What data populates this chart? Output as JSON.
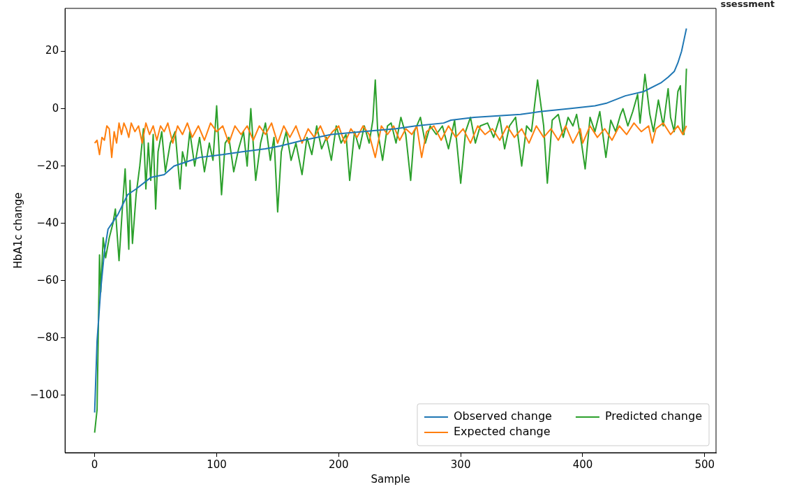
{
  "chart_data": {
    "type": "line",
    "xlabel": "Sample",
    "ylabel": "HbA1c change",
    "annotations": [
      "ssessment"
    ],
    "xlim": [
      -24.25,
      509.25
    ],
    "xticks": [
      0,
      100,
      200,
      300,
      400,
      500
    ],
    "ylim": [
      -120,
      35
    ],
    "yticks": [
      -100,
      -80,
      -60,
      -40,
      -20,
      0,
      20
    ],
    "grid": false,
    "legend": "lower right",
    "marker": "none",
    "line_style": "solid",
    "series": [
      {
        "name": "Observed change",
        "color": "#1f77b4",
        "x": [
          0,
          2,
          5,
          8,
          11,
          19,
          27,
          34,
          46,
          57,
          65,
          79,
          86,
          105,
          121,
          140,
          152,
          171,
          194,
          219,
          247,
          263,
          286,
          292,
          311,
          349,
          365,
          389,
          410,
          420,
          435,
          450,
          464,
          470,
          475,
          478,
          481,
          483,
          485
        ],
        "values": [
          -106,
          -81,
          -63,
          -50,
          -42,
          -37,
          -30,
          -28,
          -24,
          -23,
          -20,
          -18,
          -17,
          -16,
          -15,
          -14,
          -13,
          -11,
          -9,
          -8,
          -7,
          -6,
          -5,
          -4,
          -3,
          -2,
          -1,
          0,
          1,
          2,
          4.5,
          6,
          9,
          11,
          13,
          16,
          20,
          24,
          28
        ]
      },
      {
        "name": "Expected change",
        "color": "#ff7f0e",
        "x": [
          0,
          2,
          4,
          6,
          8,
          10,
          12,
          14,
          16,
          18,
          20,
          22,
          24,
          26,
          28,
          30,
          33,
          36,
          39,
          42,
          45,
          48,
          51,
          54,
          57,
          60,
          64,
          68,
          72,
          76,
          80,
          85,
          90,
          95,
          100,
          105,
          110,
          115,
          120,
          125,
          130,
          135,
          140,
          145,
          150,
          155,
          160,
          165,
          170,
          175,
          180,
          185,
          190,
          195,
          200,
          205,
          210,
          215,
          220,
          225,
          230,
          235,
          240,
          245,
          250,
          255,
          260,
          264,
          268,
          272,
          278,
          284,
          290,
          296,
          302,
          308,
          314,
          320,
          326,
          332,
          338,
          344,
          350,
          356,
          362,
          368,
          374,
          380,
          386,
          392,
          398,
          400,
          406,
          412,
          418,
          424,
          430,
          436,
          442,
          448,
          454,
          457,
          460,
          466,
          472,
          478,
          482,
          485
        ],
        "values": [
          -12,
          -11,
          -16,
          -10,
          -11,
          -6,
          -7,
          -17,
          -8,
          -12,
          -5,
          -9,
          -5,
          -7,
          -10,
          -5,
          -8,
          -6,
          -12,
          -5,
          -9,
          -6,
          -11,
          -6,
          -8,
          -5,
          -12,
          -6,
          -9,
          -5,
          -10,
          -6,
          -11,
          -5,
          -8,
          -6,
          -12,
          -6,
          -9,
          -6,
          -11,
          -6,
          -9,
          -5,
          -12,
          -6,
          -10,
          -6,
          -12,
          -7,
          -10,
          -6,
          -11,
          -8,
          -6,
          -12,
          -7,
          -10,
          -6,
          -9,
          -17,
          -6,
          -9,
          -6,
          -11,
          -7,
          -9,
          -6,
          -17,
          -8,
          -6,
          -11,
          -6,
          -10,
          -7,
          -12,
          -6,
          -9,
          -7,
          -11,
          -6,
          -10,
          -7,
          -12,
          -6,
          -10,
          -7,
          -11,
          -6,
          -12,
          -7,
          -12,
          -6,
          -10,
          -7,
          -11,
          -6,
          -9,
          -5,
          -8,
          -6,
          -12,
          -7,
          -5,
          -9,
          -6,
          -9,
          -6
        ]
      },
      {
        "name": "Predicted change",
        "color": "#2ca02c",
        "x": [
          0,
          2,
          4,
          5,
          7,
          9,
          12,
          15,
          17,
          20,
          23,
          25,
          28,
          29,
          31,
          34,
          37,
          40,
          42,
          44,
          46,
          48,
          50,
          52,
          55,
          58,
          62,
          66,
          70,
          72,
          75,
          78,
          82,
          86,
          90,
          94,
          97,
          100,
          104,
          107,
          110,
          114,
          118,
          122,
          125,
          128,
          132,
          136,
          140,
          144,
          147,
          150,
          153,
          157,
          161,
          165,
          170,
          174,
          178,
          182,
          186,
          190,
          194,
          198,
          202,
          206,
          209,
          213,
          217,
          221,
          225,
          228,
          230,
          232,
          236,
          240,
          243,
          247,
          251,
          255,
          259,
          262,
          267,
          271,
          275,
          280,
          285,
          290,
          295,
          300,
          304,
          308,
          312,
          316,
          322,
          327,
          332,
          336,
          340,
          345,
          350,
          354,
          358,
          363,
          368,
          371,
          375,
          380,
          384,
          388,
          392,
          395,
          399,
          402,
          406,
          410,
          414,
          419,
          423,
          427,
          431,
          433,
          437,
          441,
          445,
          447,
          451,
          455,
          458,
          462,
          466,
          470,
          472,
          475,
          478,
          480,
          482,
          483,
          485
        ],
        "values": [
          -113,
          -105,
          -51,
          -64,
          -45,
          -52,
          -45,
          -40,
          -35,
          -53,
          -33,
          -21,
          -49,
          -25,
          -47,
          -30,
          -20,
          -7,
          -28,
          -12,
          -25,
          -9,
          -35,
          -15,
          -8,
          -22,
          -12,
          -8,
          -28,
          -15,
          -20,
          -8,
          -20,
          -10,
          -22,
          -12,
          -18,
          1,
          -30,
          -12,
          -10,
          -22,
          -14,
          -8,
          -20,
          0,
          -25,
          -12,
          -5,
          -18,
          -10,
          -36,
          -15,
          -8,
          -18,
          -12,
          -23,
          -10,
          -16,
          -6,
          -14,
          -10,
          -18,
          -6,
          -12,
          -9,
          -25,
          -8,
          -14,
          -6,
          -12,
          -4,
          10,
          -8,
          -18,
          -6,
          -5,
          -12,
          -3,
          -9,
          -25,
          -8,
          -3,
          -12,
          -6,
          -9,
          -6,
          -14,
          -4,
          -26,
          -8,
          -3,
          -12,
          -6,
          -5,
          -10,
          -3,
          -14,
          -6,
          -3,
          -20,
          -6,
          -8,
          10,
          -6,
          -26,
          -4,
          -2,
          -10,
          -3,
          -6,
          -2,
          -12,
          -21,
          -3,
          -8,
          -1,
          -17,
          -4,
          -8,
          -2,
          0,
          -6,
          -1,
          5,
          -5,
          12,
          -2,
          -8,
          3,
          -6,
          7,
          -3,
          -8,
          6,
          8,
          -8,
          -9,
          14
        ]
      }
    ]
  }
}
